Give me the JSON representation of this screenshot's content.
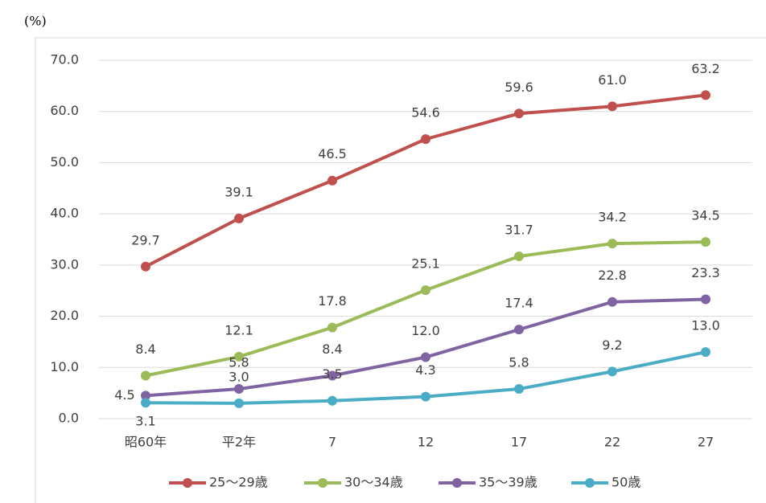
{
  "chart_data": {
    "type": "line",
    "y_label": "(%)",
    "categories": [
      "昭60年",
      "平2年",
      "7",
      "12",
      "17",
      "22",
      "27"
    ],
    "series": [
      {
        "name": "25～29歳",
        "color": "#c0504d",
        "values": [
          29.7,
          39.1,
          46.5,
          54.6,
          59.6,
          61.0,
          63.2
        ],
        "value_labels": [
          "29.7",
          "39.1",
          "46.5",
          "54.6",
          "59.6",
          "61.0",
          "63.2"
        ]
      },
      {
        "name": "30～34歳",
        "color": "#9bbb59",
        "values": [
          8.4,
          12.1,
          17.8,
          25.1,
          31.7,
          34.2,
          34.5
        ],
        "value_labels": [
          "8.4",
          "12.1",
          "17.8",
          "25.1",
          "31.7",
          "34.2",
          "34.5"
        ]
      },
      {
        "name": "35～39歳",
        "color": "#8064a2",
        "values": [
          4.5,
          5.8,
          8.4,
          12.0,
          17.4,
          22.8,
          23.3
        ],
        "value_labels": [
          "4.5",
          "5.8",
          "8.4",
          "12.0",
          "17.4",
          "22.8",
          "23.3"
        ]
      },
      {
        "name": "50歳",
        "color": "#4bacc6",
        "values": [
          3.1,
          3.0,
          3.5,
          4.3,
          5.8,
          9.2,
          13.0
        ],
        "value_labels": [
          "3.1",
          "3.0",
          "3.5",
          "4.3",
          "5.8",
          "9.2",
          "13.0"
        ]
      }
    ],
    "ylim": [
      0,
      70
    ],
    "yticks": [
      {
        "value": 0,
        "label": "0.0"
      },
      {
        "value": 10,
        "label": "10.0"
      },
      {
        "value": 20,
        "label": "20.0"
      },
      {
        "value": 30,
        "label": "30.0"
      },
      {
        "value": 40,
        "label": "40.0"
      },
      {
        "value": 50,
        "label": "50.0"
      },
      {
        "value": 60,
        "label": "60.0"
      },
      {
        "value": 70,
        "label": "70.0"
      }
    ],
    "grid": true,
    "legend": "bottom"
  }
}
